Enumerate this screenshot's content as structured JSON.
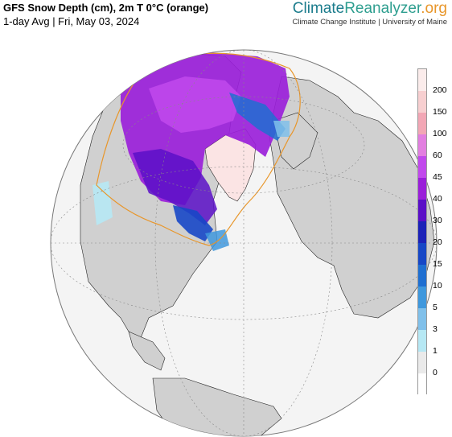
{
  "header": {
    "title": "GFS Snow Depth (cm), 2m T 0°C (orange)",
    "subtitle": "1-day Avg | Fri, May 03, 2024"
  },
  "brand": {
    "part1": "Climate",
    "part2": "Reanalyzer",
    "part3": ".org",
    "affiliation": "Climate Change Institute | University of Maine"
  },
  "colorbar": {
    "labels": [
      "200",
      "150",
      "100",
      "60",
      "45",
      "40",
      "30",
      "20",
      "15",
      "10",
      "5",
      "3",
      "1",
      "0"
    ],
    "colors": [
      "#fbeceb",
      "#f7cfd0",
      "#f2a7b5",
      "#e27fe0",
      "#c149ec",
      "#9a1fd9",
      "#5a0fc7",
      "#1c22b8",
      "#1747c6",
      "#1f6fd1",
      "#3f98dd",
      "#80c0ea",
      "#b6e8f4",
      "#eaeaea",
      "#ffffff"
    ]
  },
  "map": {
    "land_color": "#d0d0d0",
    "ocean_color": "#f4f4f4",
    "freezing_line_color": "#e8962a"
  }
}
